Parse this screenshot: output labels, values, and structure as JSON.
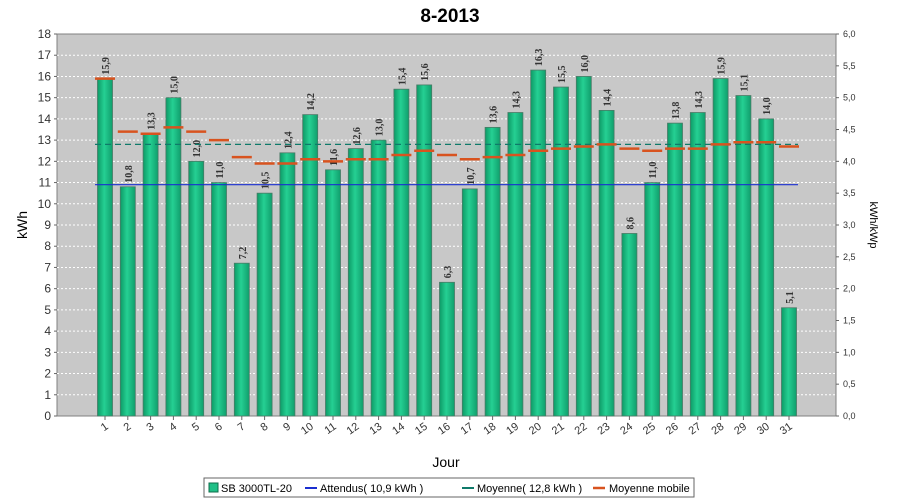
{
  "chart_data": {
    "type": "bar",
    "title": "8-2013",
    "xlabel": "Jour",
    "ylabel": "kWh",
    "y2label": "kWh/kWp",
    "ylim": [
      0,
      18
    ],
    "y2lim": [
      0,
      6
    ],
    "yticks": [
      "0",
      "1",
      "2",
      "3",
      "4",
      "5",
      "6",
      "7",
      "8",
      "9",
      "10",
      "11",
      "12",
      "13",
      "14",
      "15",
      "16",
      "17",
      "18"
    ],
    "y2ticks": [
      "0,0",
      "0,5",
      "1,0",
      "1,5",
      "2,0",
      "2,5",
      "3,0",
      "3,5",
      "4,0",
      "4,5",
      "5,0",
      "5,5",
      "6,0"
    ],
    "categories": [
      "1",
      "2",
      "3",
      "4",
      "5",
      "6",
      "7",
      "8",
      "9",
      "10",
      "11",
      "12",
      "13",
      "14",
      "15",
      "16",
      "17",
      "18",
      "19",
      "20",
      "21",
      "22",
      "23",
      "24",
      "25",
      "26",
      "27",
      "28",
      "29",
      "30",
      "31"
    ],
    "series": [
      {
        "name": "SB 3000TL-20",
        "values": [
          15.9,
          10.8,
          13.3,
          15.0,
          12.0,
          11.0,
          7.2,
          10.5,
          12.4,
          14.2,
          11.6,
          12.6,
          13.0,
          15.4,
          15.6,
          6.3,
          10.7,
          13.6,
          14.3,
          16.3,
          15.5,
          16.0,
          14.4,
          8.6,
          11.0,
          13.8,
          14.3,
          15.9,
          15.1,
          14.0,
          5.1
        ],
        "labels": [
          "15,9",
          "10,8",
          "13,3",
          "15,0",
          "12,0",
          "11,0",
          "7,2",
          "10,5",
          "12,4",
          "14,2",
          "11,6",
          "12,6",
          "13,0",
          "15,4",
          "15,6",
          "6,3",
          "10,7",
          "13,6",
          "14,3",
          "16,3",
          "15,5",
          "16,0",
          "14,4",
          "8,6",
          "11,0",
          "13,8",
          "14,3",
          "15,9",
          "15,1",
          "14,0",
          "5,1"
        ]
      },
      {
        "name": "Moyenne mobile",
        "values": [
          15.9,
          13.4,
          13.3,
          13.6,
          13.4,
          13.0,
          12.2,
          11.9,
          11.9,
          12.1,
          12.0,
          12.1,
          12.1,
          12.3,
          12.5,
          12.3,
          12.1,
          12.2,
          12.3,
          12.5,
          12.6,
          12.7,
          12.8,
          12.6,
          12.5,
          12.6,
          12.6,
          12.8,
          12.9,
          12.9,
          12.7
        ]
      }
    ],
    "reference_lines": [
      {
        "name": "Attendus( 10,9 kWh )",
        "value": 10.9,
        "color": "#1a2ed0"
      },
      {
        "name": "Moyenne( 12,8 kWh )",
        "value": 12.8,
        "color": "#0f7a6a"
      }
    ],
    "legend_entries": [
      "SB 3000TL-20",
      "Attendus( 10,9 kWh )",
      "Moyenne( 12,8 kWh )",
      "Moyenne mobile"
    ],
    "legend_position": "bottom",
    "grid": true,
    "colors": {
      "bar": "#1fbf86",
      "bar_dark": "#0d9a66",
      "attendus": "#1a2ed0",
      "moyenne": "#0f7a6a",
      "moyenne_mobile": "#d8531f",
      "plot_bg": "#c8c8c8"
    }
  }
}
